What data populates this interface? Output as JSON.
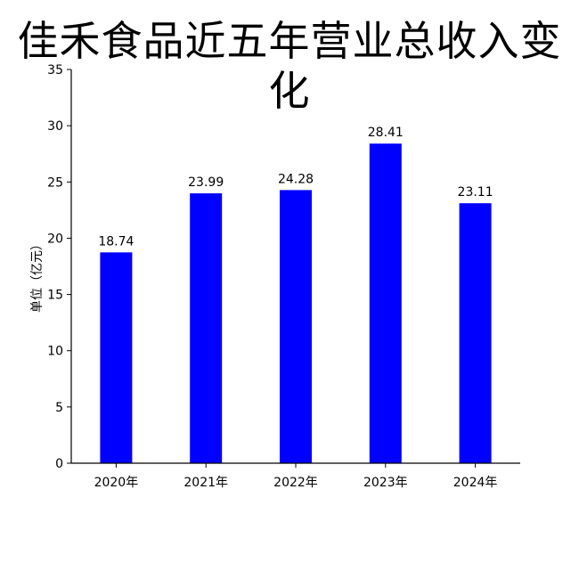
{
  "chart_data": {
    "type": "bar",
    "title": "佳禾食品近五年营业总收入变化",
    "xlabel": "",
    "ylabel": "单位（亿元）",
    "categories": [
      "2020年",
      "2021年",
      "2022年",
      "2023年",
      "2024年"
    ],
    "values": [
      18.74,
      23.99,
      24.28,
      28.41,
      23.11
    ],
    "data_labels": [
      "18.74",
      "23.99",
      "24.28",
      "28.41",
      "23.11"
    ],
    "ylim": [
      0,
      35
    ],
    "yticks": [
      "0",
      "5",
      "10",
      "15",
      "20",
      "25",
      "30",
      "35"
    ],
    "bar_color": "#0000FF",
    "grid": false,
    "legend": "none"
  }
}
